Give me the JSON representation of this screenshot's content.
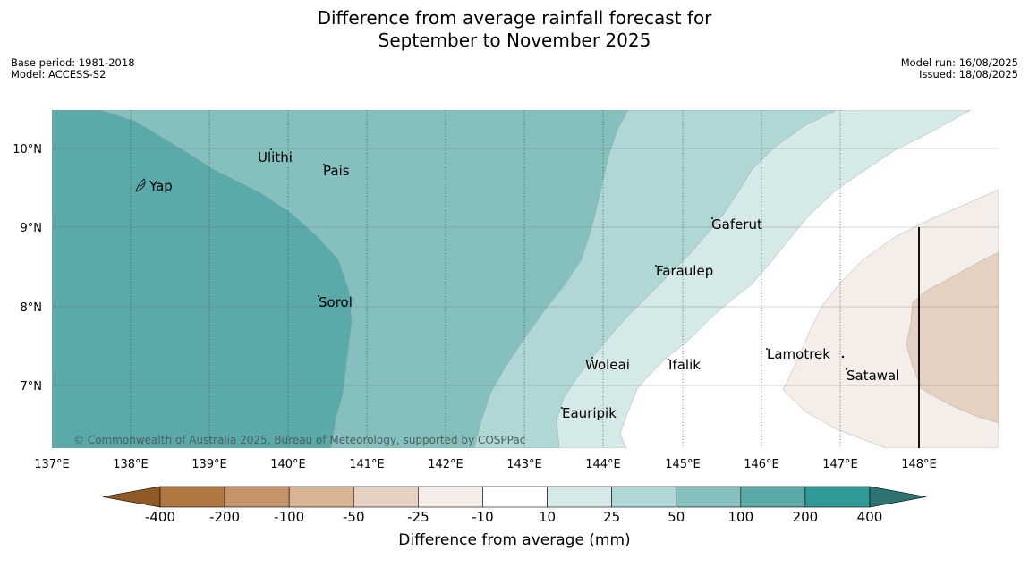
{
  "title": {
    "line1": "Difference from average rainfall forecast for",
    "line2": "September to November 2025"
  },
  "meta_left": {
    "base_period": "Base period: 1981-2018",
    "model": "Model: ACCESS-S2"
  },
  "meta_right": {
    "model_run": "Model run: 16/08/2025",
    "issued": "Issued: 18/08/2025"
  },
  "map": {
    "copyright": "© Commonwealth of Australia 2025, Bureau of Meteorology, supported by COSPPac",
    "lon_ticks": [
      "137°E",
      "138°E",
      "139°E",
      "140°E",
      "141°E",
      "142°E",
      "143°E",
      "144°E",
      "145°E",
      "146°E",
      "147°E",
      "148°E"
    ],
    "lat_ticks": [
      "10°N",
      "9°N",
      "8°N",
      "7°N"
    ],
    "places": [
      "Ulithi",
      "Pais",
      "Yap",
      "Gaferut",
      "Faraulep",
      "Sorol",
      "Lamotrek",
      "Woleai",
      "Ifalik",
      "Satawal",
      "Eauripik"
    ]
  },
  "colorbar": {
    "label": "Difference from average (mm)",
    "ticks": [
      "-400",
      "-200",
      "-100",
      "-50",
      "-25",
      "-10",
      "10",
      "25",
      "50",
      "100",
      "200",
      "400"
    ],
    "colors": [
      "#8f5a26",
      "#b07840",
      "#c4936a",
      "#d8b494",
      "#e5d1c2",
      "#f5eee8",
      "#ffffff",
      "#d5e9e8",
      "#aed7d6",
      "#85c0bf",
      "#5aaaa9",
      "#319b98",
      "#2d7372"
    ]
  }
}
